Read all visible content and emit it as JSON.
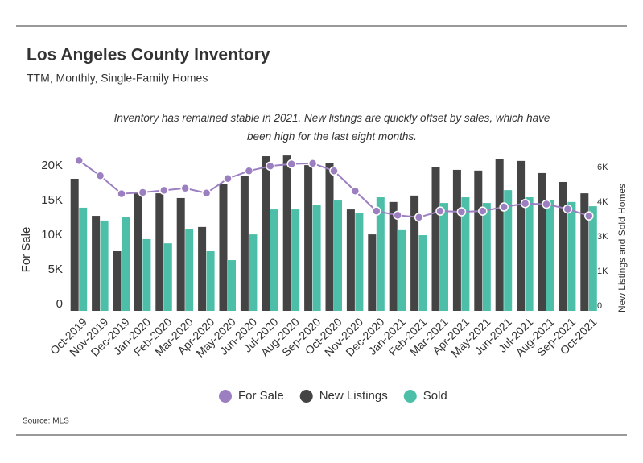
{
  "chart_data": {
    "type": "bar-line",
    "title": "Los Angeles County Inventory",
    "subtitle": "TTM, Monthly, Single-Family Homes",
    "annotation": "Inventory has remained stable in 2021. New listings are quickly offset by sales, which have been high for the last eight months.",
    "ylabel": "For Sale",
    "y2label": "New Listings and Sold Homes",
    "source": "Source:  MLS",
    "categories": [
      "Oct-2019",
      "Nov-2019",
      "Dec-2019",
      "Jan-2020",
      "Feb-2020",
      "Mar-2020",
      "Apr-2020",
      "May-2020",
      "Jun-2020",
      "Jul-2020",
      "Aug-2020",
      "Sep-2020",
      "Oct-2020",
      "Nov-2020",
      "Dec-2020",
      "Jan-2021",
      "Feb-2021",
      "Mar-2021",
      "Apr-2021",
      "May-2021",
      "Jun-2021",
      "Jul-2021",
      "Aug-2021",
      "Sep-2021",
      "Oct-2021"
    ],
    "series": [
      {
        "name": "For Sale",
        "type": "line",
        "axis": "y",
        "color": "#9b7fc0",
        "values": [
          21700,
          19500,
          16900,
          17100,
          17400,
          17700,
          17000,
          19100,
          20200,
          20900,
          21200,
          21300,
          20200,
          17300,
          14400,
          13800,
          13500,
          14400,
          14300,
          14400,
          15000,
          15500,
          15400,
          14700,
          13700
        ]
      },
      {
        "name": "New Listings",
        "type": "bar",
        "axis": "y2",
        "color": "#444444",
        "values": [
          5340,
          3840,
          2410,
          4750,
          4750,
          4560,
          3390,
          5140,
          5440,
          6250,
          6280,
          5890,
          5960,
          4100,
          3090,
          4400,
          4660,
          5800,
          5700,
          5670,
          6150,
          6060,
          5570,
          5210,
          4750
        ]
      },
      {
        "name": "Sold",
        "type": "bar",
        "axis": "y2",
        "color": "#4dbfa8",
        "values": [
          4170,
          3650,
          3780,
          2900,
          2730,
          3290,
          2410,
          2050,
          3090,
          4100,
          4100,
          4270,
          4460,
          3940,
          4590,
          3260,
          3060,
          4360,
          4590,
          4360,
          4880,
          4590,
          4460,
          4400,
          4230
        ]
      }
    ],
    "ylim": [
      0,
      22000
    ],
    "yticks": [
      0,
      {
        "value": 5000,
        "label": "5K"
      },
      {
        "value": 10000,
        "label": "10K"
      },
      {
        "value": 15000,
        "label": "15K"
      },
      {
        "value": 20000,
        "label": "20K"
      }
    ],
    "y2lim": [
      0,
      6160
    ],
    "y2ticks": [
      0,
      {
        "value": 1400,
        "label": "1K"
      },
      {
        "value": 2800,
        "label": "3K"
      },
      {
        "value": 4200,
        "label": "4K"
      },
      {
        "value": 5600,
        "label": "6K"
      }
    ],
    "grid": false
  }
}
